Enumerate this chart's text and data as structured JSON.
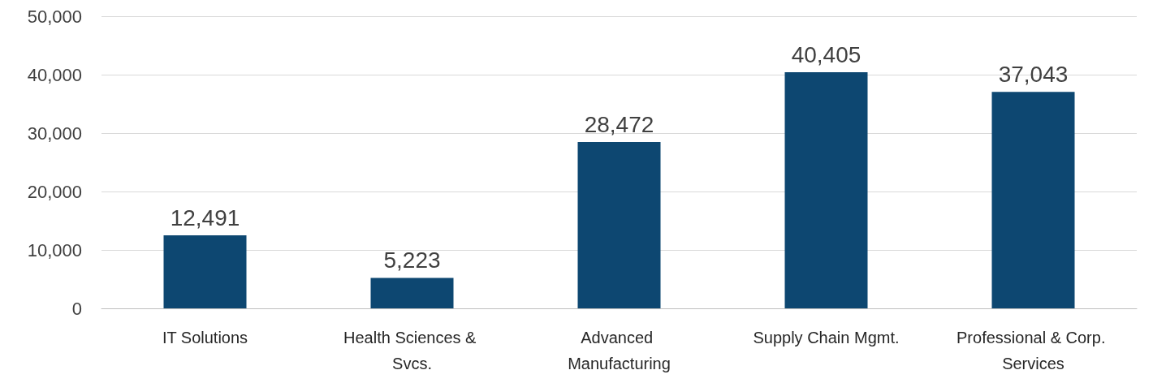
{
  "chart_data": {
    "type": "bar",
    "categories": [
      "IT Solutions",
      "Health Sciences & Svcs.",
      "Advanced Manufacturing",
      "Supply Chain Mgmt.",
      "Professional & Corp. Services"
    ],
    "values": [
      12491,
      5223,
      28472,
      40405,
      37043
    ],
    "value_labels": [
      "12,491",
      "5,223",
      "28,472",
      "40,405",
      "37,043"
    ],
    "color": "#0d4771",
    "ylim": [
      0,
      50000
    ],
    "yticks": [
      0,
      {
        "value": 10000,
        "label": "10,000"
      },
      {
        "value": 20000,
        "label": "20,000"
      },
      {
        "value": 30000,
        "label": "30,000"
      },
      {
        "value": 40000,
        "label": "40,000"
      },
      {
        "value": 50000,
        "label": "50,000"
      }
    ],
    "grid": "y"
  }
}
